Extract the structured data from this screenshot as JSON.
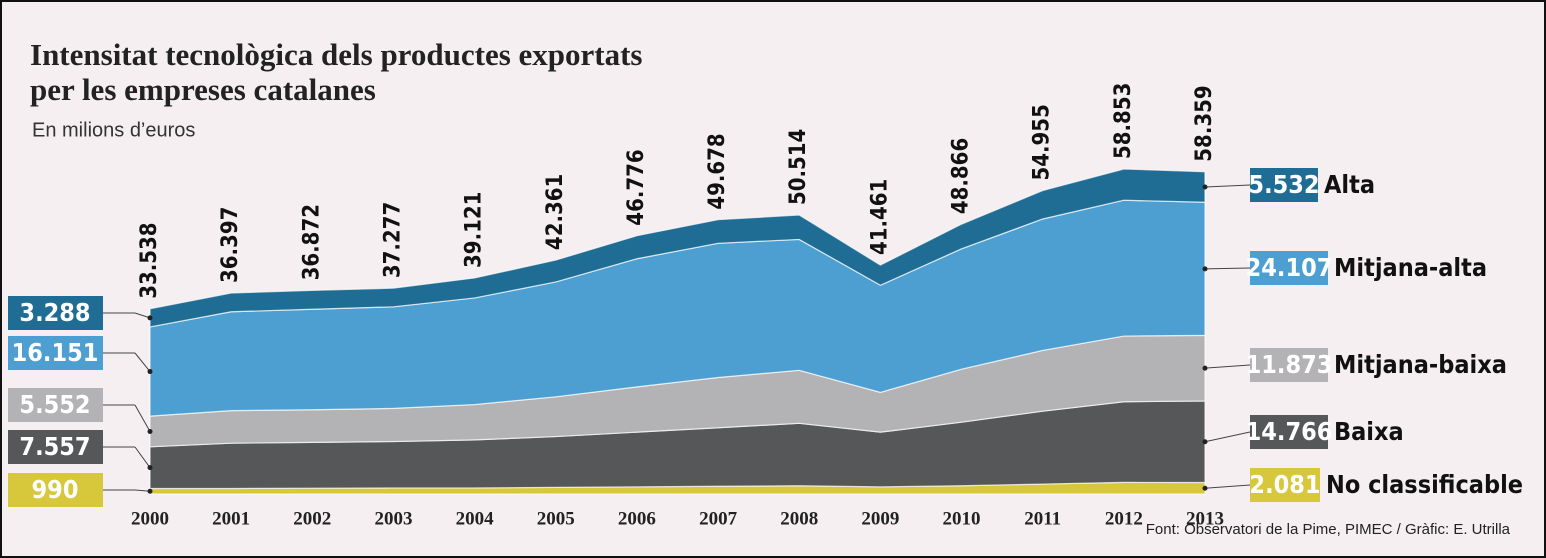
{
  "chart_data": {
    "type": "stacked_area",
    "title": "Intensitat tecnològica dels productes exportats",
    "title_line2": "per les empreses catalanes",
    "subtitle": "En milions d’euros",
    "source": "Font: Observatori de la Pime, PIMEC / Gràfic: E. Utrilla",
    "categories": [
      "2000",
      "2001",
      "2002",
      "2003",
      "2004",
      "2005",
      "2006",
      "2007",
      "2008",
      "2009",
      "2010",
      "2011",
      "2012",
      "2013"
    ],
    "totals": {
      "values": [
        33538,
        36397,
        36872,
        37277,
        39121,
        42361,
        46776,
        49678,
        50514,
        41461,
        48866,
        54955,
        58853,
        58359
      ],
      "value_labels": [
        "33.538",
        "36.397",
        "36.872",
        "37.277",
        "39.121",
        "42.361",
        "46.776",
        "49.678",
        "50.514",
        "41.461",
        "48.866",
        "54.955",
        "58.853",
        "58.359"
      ]
    },
    "series": [
      {
        "name": "No classificable",
        "color": "#d6c83a",
        "values": [
          990,
          1000,
          1050,
          1100,
          1100,
          1200,
          1300,
          1400,
          1500,
          1300,
          1500,
          1800,
          2100,
          2081
        ],
        "value_labels": [
          "990",
          null,
          null,
          null,
          null,
          null,
          null,
          null,
          null,
          null,
          null,
          null,
          null,
          "2.081"
        ]
      },
      {
        "name": "Baixa",
        "color": "#555759",
        "values": [
          7557,
          8200,
          8300,
          8400,
          8700,
          9200,
          9900,
          10600,
          11300,
          9900,
          11500,
          13200,
          14600,
          14766
        ],
        "value_labels": [
          "7.557",
          null,
          null,
          null,
          null,
          null,
          null,
          null,
          null,
          null,
          null,
          null,
          null,
          "14.766"
        ]
      },
      {
        "name": "Mitjana-baixa",
        "color": "#b3b3b5",
        "values": [
          5552,
          5900,
          5900,
          6000,
          6400,
          7200,
          8200,
          9100,
          9600,
          7200,
          9600,
          11000,
          11900,
          11873
        ],
        "value_labels": [
          "5.552",
          null,
          null,
          null,
          null,
          null,
          null,
          null,
          null,
          null,
          null,
          null,
          null,
          "11.873"
        ]
      },
      {
        "name": "Mitjana-alta",
        "color": "#4d9fd1",
        "values": [
          16151,
          17900,
          18200,
          18400,
          19300,
          20800,
          23200,
          24300,
          23700,
          19400,
          21800,
          23800,
          24600,
          24107
        ],
        "value_labels": [
          "16.151",
          null,
          null,
          null,
          null,
          null,
          null,
          null,
          null,
          null,
          null,
          null,
          null,
          "24.107"
        ]
      },
      {
        "name": "Alta",
        "color": "#1f6d95",
        "values": [
          3288,
          3397,
          3422,
          3377,
          3621,
          3961,
          4176,
          4278,
          4414,
          3661,
          4466,
          5155,
          5653,
          5532
        ],
        "value_labels": [
          "3.288",
          null,
          null,
          null,
          null,
          null,
          null,
          null,
          null,
          null,
          null,
          null,
          null,
          "5.532"
        ]
      }
    ]
  }
}
